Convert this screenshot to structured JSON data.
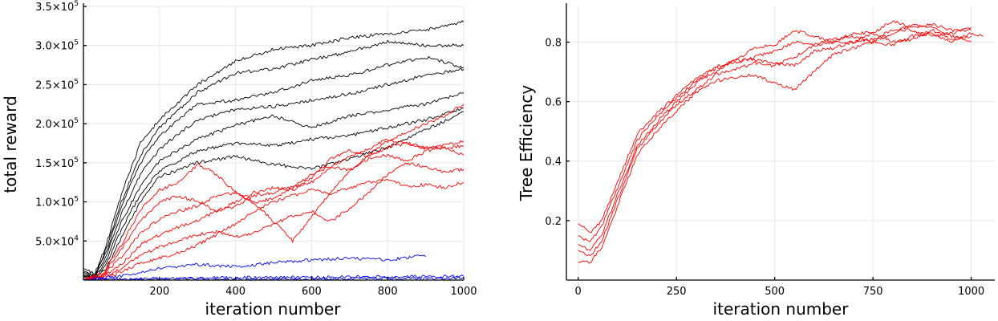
{
  "chart_data": [
    {
      "type": "line",
      "xlabel": "iteration number",
      "ylabel": "total reward",
      "xlim": [
        0,
        1000
      ],
      "ylim": [
        0,
        350000
      ],
      "xticks": [
        200,
        400,
        600,
        800,
        1000
      ],
      "xtick_labels": [
        "200",
        "400",
        "600",
        "800",
        "1000"
      ],
      "yticks": [
        50000,
        100000,
        150000,
        200000,
        250000,
        300000,
        350000
      ],
      "ytick_labels": [
        {
          "mant": "5.0×10",
          "exp": "4"
        },
        {
          "mant": "1.0×10",
          "exp": "5"
        },
        {
          "mant": "1.5×10",
          "exp": "5"
        },
        {
          "mant": "2.0×10",
          "exp": "5"
        },
        {
          "mant": "2.5×10",
          "exp": "5"
        },
        {
          "mant": "3.0×10",
          "exp": "5"
        },
        {
          "mant": "3.5×10",
          "exp": "5"
        }
      ],
      "grid": true,
      "legend": "none",
      "series": [
        {
          "color": "#000000",
          "x": [
            0,
            30,
            60,
            100,
            150,
            200,
            300,
            400,
            500,
            600,
            700,
            800,
            900,
            1000
          ],
          "values": [
            15000,
            8000,
            45000,
            110000,
            175000,
            205000,
            250000,
            280000,
            295000,
            300000,
            310000,
            315000,
            320000,
            330000
          ]
        },
        {
          "color": "#000000",
          "x": [
            0,
            30,
            60,
            100,
            150,
            200,
            300,
            400,
            500,
            600,
            700,
            800,
            900,
            1000
          ],
          "values": [
            12000,
            6000,
            40000,
            100000,
            160000,
            195000,
            240000,
            265000,
            270000,
            282000,
            292000,
            305000,
            300000,
            300000
          ]
        },
        {
          "color": "#000000",
          "x": [
            0,
            30,
            60,
            100,
            150,
            200,
            300,
            400,
            500,
            600,
            700,
            800,
            900,
            1000
          ],
          "values": [
            10000,
            5000,
            35000,
            95000,
            150000,
            185000,
            225000,
            230000,
            240000,
            255000,
            262000,
            275000,
            285000,
            272000
          ]
        },
        {
          "color": "#000000",
          "x": [
            0,
            30,
            60,
            100,
            150,
            200,
            300,
            400,
            500,
            600,
            700,
            800,
            900,
            1000
          ],
          "values": [
            8000,
            4000,
            30000,
            85000,
            135000,
            168000,
            205000,
            218000,
            222000,
            230000,
            238000,
            250000,
            262000,
            270000
          ]
        },
        {
          "color": "#000000",
          "x": [
            0,
            30,
            60,
            100,
            150,
            200,
            300,
            400,
            500,
            600,
            700,
            800,
            900,
            1000
          ],
          "values": [
            6000,
            3000,
            25000,
            75000,
            120000,
            152000,
            180000,
            198000,
            210000,
            195000,
            210000,
            218000,
            225000,
            240000
          ]
        },
        {
          "color": "#000000",
          "x": [
            0,
            30,
            60,
            100,
            150,
            200,
            300,
            400,
            500,
            600,
            700,
            800,
            900,
            1000
          ],
          "values": [
            5000,
            2000,
            20000,
            65000,
            110000,
            140000,
            165000,
            175000,
            172000,
            180000,
            185000,
            195000,
            205000,
            220000
          ]
        },
        {
          "color": "#000000",
          "x": [
            0,
            30,
            60,
            100,
            150,
            200,
            300,
            400,
            500,
            600,
            700,
            800,
            900,
            1000
          ],
          "values": [
            4000,
            1500,
            15000,
            55000,
            100000,
            132000,
            150000,
            158000,
            148000,
            142000,
            155000,
            170000,
            192000,
            215000
          ]
        },
        {
          "color": "#ff0000",
          "x": [
            0,
            50,
            100,
            150,
            200,
            250,
            300,
            350,
            400,
            450,
            500,
            550,
            600,
            650,
            700,
            750,
            800,
            850,
            900,
            950,
            1000
          ],
          "values": [
            1000,
            8000,
            45000,
            90000,
            115000,
            125000,
            148000,
            135000,
            112000,
            98000,
            105000,
            118000,
            130000,
            155000,
            165000,
            158000,
            170000,
            175000,
            168000,
            172000,
            178000
          ]
        },
        {
          "color": "#ff0000",
          "x": [
            0,
            50,
            100,
            150,
            200,
            250,
            300,
            350,
            400,
            450,
            500,
            550,
            600,
            650,
            700,
            750,
            800,
            850,
            900,
            950,
            1000
          ],
          "values": [
            1000,
            6000,
            40000,
            75000,
            100000,
            108000,
            100000,
            88000,
            95000,
            108000,
            112000,
            120000,
            135000,
            145000,
            140000,
            155000,
            160000,
            152000,
            165000,
            170000,
            160000
          ]
        },
        {
          "color": "#ff0000",
          "x": [
            0,
            50,
            100,
            150,
            200,
            250,
            300,
            350,
            400,
            450,
            500,
            550,
            600,
            650,
            700,
            750,
            800,
            850,
            900,
            950,
            1000
          ],
          "values": [
            500,
            5000,
            30000,
            60000,
            78000,
            88000,
            95000,
            108000,
            112000,
            98000,
            75000,
            50000,
            80000,
            112000,
            138000,
            160000,
            178000,
            190000,
            200000,
            210000,
            225000
          ]
        },
        {
          "color": "#ff0000",
          "x": [
            0,
            50,
            100,
            150,
            200,
            250,
            300,
            350,
            400,
            450,
            500,
            550,
            600,
            650,
            700,
            750,
            800,
            850,
            900,
            950,
            1000
          ],
          "values": [
            500,
            4000,
            20000,
            45000,
            58000,
            68000,
            76000,
            88000,
            100000,
            112000,
            118000,
            115000,
            125000,
            145000,
            158000,
            168000,
            180000,
            175000,
            170000,
            168000,
            172000
          ]
        },
        {
          "color": "#ff0000",
          "x": [
            0,
            50,
            100,
            150,
            200,
            250,
            300,
            350,
            400,
            450,
            500,
            550,
            600,
            650,
            700,
            750,
            800,
            850,
            900,
            950,
            1000
          ],
          "values": [
            300,
            3000,
            15000,
            32000,
            42000,
            50000,
            58000,
            62000,
            55000,
            60000,
            72000,
            82000,
            88000,
            75000,
            92000,
            112000,
            135000,
            150000,
            145000,
            138000,
            142000
          ]
        },
        {
          "color": "#ff0000",
          "x": [
            0,
            50,
            100,
            150,
            200,
            250,
            300,
            350,
            400,
            450,
            500,
            550,
            600,
            650,
            700,
            750,
            800,
            850,
            900,
            950,
            1000
          ],
          "values": [
            200,
            2000,
            10000,
            22000,
            28000,
            35000,
            45000,
            58000,
            72000,
            88000,
            100000,
            108000,
            115000,
            110000,
            118000,
            125000,
            128000,
            120000,
            122000,
            118000,
            125000
          ]
        },
        {
          "color": "#0000ff",
          "x": [
            0,
            100,
            200,
            300,
            400,
            500,
            600,
            700,
            800,
            850,
            880,
            900
          ],
          "values": [
            500,
            5000,
            15000,
            20000,
            17000,
            22000,
            26000,
            28000,
            26000,
            28000,
            32000,
            30000
          ]
        },
        {
          "color": "#0000ff",
          "x": [
            0,
            200,
            400,
            600,
            800,
            1000
          ],
          "values": [
            0,
            2000,
            3000,
            3500,
            4000,
            4500
          ]
        },
        {
          "color": "#0000ff",
          "x": [
            0,
            200,
            400,
            600,
            800,
            1000
          ],
          "values": [
            0,
            500,
            1000,
            1500,
            2000,
            2000
          ]
        }
      ]
    },
    {
      "type": "line",
      "xlabel": "iteration number",
      "ylabel": "Tree Efficiency",
      "xlim": [
        -30,
        1060
      ],
      "ylim": [
        0,
        0.92
      ],
      "xticks": [
        0,
        250,
        500,
        750,
        1000
      ],
      "xtick_labels": [
        "0",
        "250",
        "500",
        "750",
        "1000"
      ],
      "yticks": [
        0.2,
        0.4,
        0.6,
        0.8
      ],
      "ytick_labels": [
        "0.2",
        "0.4",
        "0.6",
        "0.8"
      ],
      "grid": true,
      "legend": "none",
      "series": [
        {
          "color": "#ff0000",
          "x": [
            0,
            30,
            60,
            100,
            150,
            200,
            250,
            300,
            350,
            400,
            450,
            500,
            550,
            600,
            650,
            700,
            750,
            800,
            850,
            900,
            950,
            1000
          ],
          "values": [
            0.19,
            0.16,
            0.2,
            0.33,
            0.49,
            0.56,
            0.62,
            0.68,
            0.71,
            0.74,
            0.78,
            0.79,
            0.84,
            0.82,
            0.8,
            0.83,
            0.83,
            0.87,
            0.85,
            0.86,
            0.84,
            0.84
          ]
        },
        {
          "color": "#ff0000",
          "x": [
            0,
            30,
            60,
            100,
            150,
            200,
            250,
            300,
            350,
            400,
            450,
            500,
            550,
            600,
            650,
            700,
            750,
            800,
            850,
            900,
            950,
            1000
          ],
          "values": [
            0.15,
            0.13,
            0.18,
            0.31,
            0.47,
            0.55,
            0.61,
            0.67,
            0.7,
            0.74,
            0.74,
            0.73,
            0.72,
            0.77,
            0.78,
            0.8,
            0.81,
            0.84,
            0.84,
            0.82,
            0.83,
            0.85
          ]
        },
        {
          "color": "#ff0000",
          "x": [
            0,
            30,
            60,
            100,
            150,
            200,
            250,
            300,
            350,
            400,
            450,
            500,
            550,
            600,
            650,
            700,
            750,
            800,
            850,
            900,
            950,
            1000
          ],
          "values": [
            0.12,
            0.1,
            0.15,
            0.29,
            0.45,
            0.53,
            0.6,
            0.66,
            0.72,
            0.73,
            0.75,
            0.77,
            0.8,
            0.79,
            0.81,
            0.82,
            0.8,
            0.83,
            0.86,
            0.85,
            0.82,
            0.8
          ]
        },
        {
          "color": "#ff0000",
          "x": [
            0,
            30,
            60,
            100,
            150,
            200,
            250,
            300,
            350,
            400,
            450,
            500,
            550,
            600,
            650,
            700,
            750,
            800,
            850,
            900,
            950,
            1000
          ],
          "values": [
            0.1,
            0.08,
            0.13,
            0.27,
            0.44,
            0.52,
            0.59,
            0.64,
            0.69,
            0.71,
            0.73,
            0.72,
            0.75,
            0.79,
            0.8,
            0.8,
            0.83,
            0.8,
            0.81,
            0.84,
            0.81,
            0.82
          ]
        },
        {
          "color": "#ff0000",
          "x": [
            0,
            30,
            60,
            100,
            150,
            200,
            250,
            300,
            350,
            400,
            450,
            500,
            550,
            600,
            650,
            700,
            750,
            800,
            850,
            900,
            950,
            1000,
            1030
          ],
          "values": [
            0.06,
            0.06,
            0.11,
            0.25,
            0.42,
            0.5,
            0.57,
            0.63,
            0.67,
            0.68,
            0.69,
            0.66,
            0.64,
            0.7,
            0.76,
            0.78,
            0.8,
            0.79,
            0.82,
            0.83,
            0.8,
            0.83,
            0.82
          ]
        }
      ]
    }
  ]
}
